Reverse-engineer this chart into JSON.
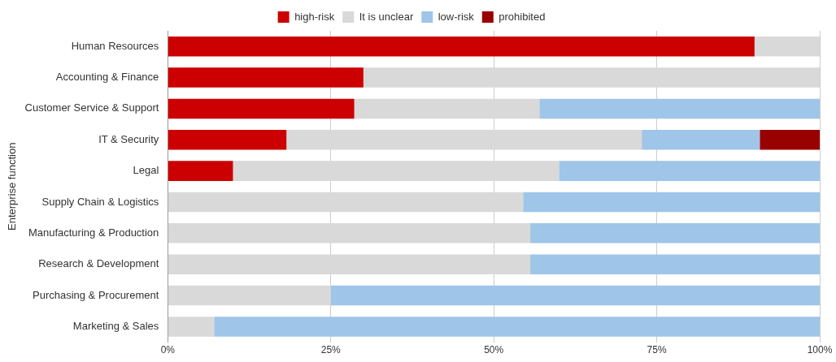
{
  "chart_data": {
    "type": "bar",
    "orientation": "horizontal",
    "stacked": true,
    "ylabel": "Enterprise function",
    "categories": [
      "Human Resources",
      "Accounting & Finance",
      "Customer Service & Support",
      "IT & Security",
      "Legal",
      "Supply Chain & Logistics",
      "Manufacturing & Production",
      "Research & Development",
      "Purchasing & Procurement",
      "Marketing & Sales"
    ],
    "series": [
      {
        "name": "high-risk",
        "color": "#cc0000",
        "values": [
          90,
          30,
          28.6,
          18.2,
          10,
          0,
          0,
          0,
          0,
          0
        ]
      },
      {
        "name": "It is unclear",
        "color": "#d9d9d9",
        "values": [
          10,
          70,
          28.4,
          54.5,
          50,
          54.5,
          55.6,
          55.6,
          25,
          7.1
        ]
      },
      {
        "name": "low-risk",
        "color": "#9fc5e8",
        "values": [
          0,
          0,
          43,
          18.1,
          40,
          45.5,
          44.4,
          44.4,
          75,
          92.9
        ]
      },
      {
        "name": "prohibited",
        "color": "#990000",
        "values": [
          0,
          0,
          0,
          9.2,
          0,
          0,
          0,
          0,
          0,
          0
        ]
      }
    ],
    "xlim": [
      0,
      100
    ],
    "xticks": [
      {
        "value": 0,
        "label": "0%"
      },
      {
        "value": 25,
        "label": "25%"
      },
      {
        "value": 50,
        "label": "50%"
      },
      {
        "value": 75,
        "label": "75%"
      },
      {
        "value": 100,
        "label": "100%"
      }
    ],
    "grid": "x",
    "legend": "top"
  }
}
